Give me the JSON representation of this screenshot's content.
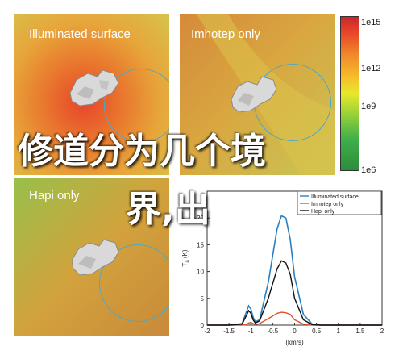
{
  "panels": {
    "illuminated": {
      "label": "Illuminated surface"
    },
    "imhotep": {
      "label": "Imhotep only"
    },
    "hapi": {
      "label": "Hapi only"
    }
  },
  "colorbar": {
    "labels": [
      "1e15",
      "1e12",
      "1e9",
      "1e6"
    ],
    "colors": [
      "#c8272c",
      "#f08a2a",
      "#e8e82a",
      "#3fae4a",
      "#2d8c3c"
    ]
  },
  "overlay": {
    "line1": "修道分为几个境",
    "line2": "界,出"
  },
  "chart_data": {
    "type": "line",
    "xlabel": "(km/s)",
    "ylabel": "T",
    "ylabel_sub": "a",
    "ylabel_unit": "(K)",
    "xlim": [
      -2,
      2
    ],
    "ylim": [
      0,
      25
    ],
    "xticks": [
      "-2",
      "-1.5",
      "-1",
      "-0.5",
      "0",
      "0.5",
      "1",
      "1.5",
      "2"
    ],
    "yticks": [
      "0",
      "5",
      "10",
      "15",
      "20"
    ],
    "legend_position": "top-right",
    "x": [
      -2.0,
      -1.5,
      -1.2,
      -1.1,
      -1.05,
      -1.0,
      -0.95,
      -0.9,
      -0.8,
      -0.6,
      -0.4,
      -0.3,
      -0.2,
      -0.1,
      0.0,
      0.2,
      0.4,
      0.6,
      1.0,
      1.5,
      2.0
    ],
    "series": [
      {
        "name": "Illuminated surface",
        "color": "#2a7fc0",
        "values": [
          0,
          0,
          0.3,
          2.5,
          3.6,
          3.0,
          1.5,
          0.6,
          1.0,
          8.0,
          18.0,
          20.4,
          20.0,
          16.0,
          9.0,
          2.0,
          0.2,
          0,
          0,
          0,
          0
        ]
      },
      {
        "name": "Imhotep only",
        "color": "#e0522a",
        "values": [
          0,
          0,
          0,
          0.1,
          0.4,
          0.5,
          0.3,
          0.1,
          0.3,
          1.2,
          2.2,
          2.4,
          2.3,
          2.0,
          1.0,
          0.2,
          0,
          0,
          0,
          0,
          0
        ]
      },
      {
        "name": "Hapi only",
        "color": "#111111",
        "values": [
          0,
          0,
          0.2,
          1.8,
          2.7,
          2.2,
          1.0,
          0.4,
          0.8,
          5.0,
          10.5,
          12.0,
          11.6,
          9.5,
          5.0,
          1.0,
          0.1,
          0,
          0,
          0,
          0
        ]
      }
    ]
  }
}
